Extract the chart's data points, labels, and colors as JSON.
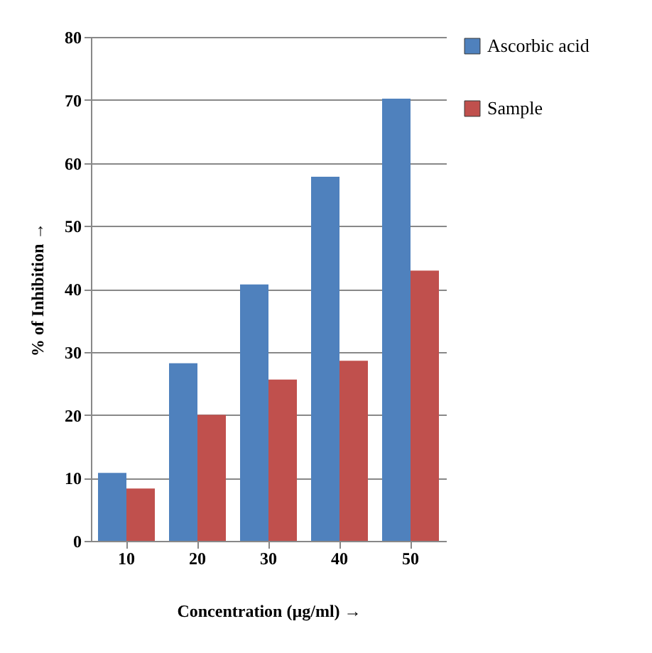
{
  "chart_data": {
    "type": "bar",
    "xlabel": "Concentration (µg/ml) →",
    "ylabel": "% of Inhibition →",
    "categories": [
      "10",
      "20",
      "30",
      "40",
      "50"
    ],
    "series": [
      {
        "name": "Ascorbic acid",
        "color": "#4f81bd",
        "values": [
          10.8,
          28.2,
          40.7,
          57.8,
          70.2
        ]
      },
      {
        "name": "Sample",
        "color": "#c0504d",
        "values": [
          8.3,
          20,
          25.6,
          28.6,
          42.9
        ]
      }
    ],
    "ylim": [
      0,
      80
    ],
    "yticks": [
      0,
      10,
      20,
      30,
      40,
      50,
      60,
      70,
      80
    ],
    "grid": "y",
    "legend": "right"
  }
}
